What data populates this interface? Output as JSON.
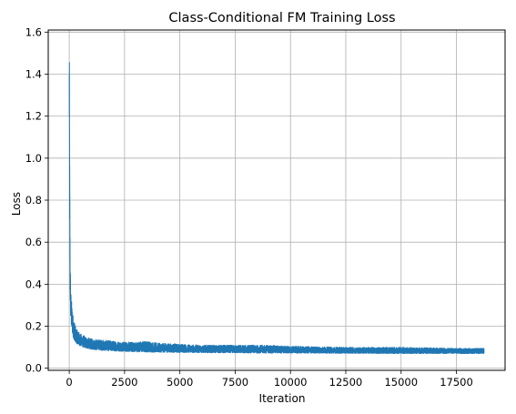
{
  "chart_data": {
    "type": "line",
    "title": "Class-Conditional FM Training Loss",
    "xlabel": "Iteration",
    "ylabel": "Loss",
    "xlim": [
      -950,
      19700
    ],
    "ylim": [
      -0.01,
      1.61
    ],
    "xticks": [
      0,
      2500,
      5000,
      7500,
      10000,
      12500,
      15000,
      17500
    ],
    "yticks": [
      0.0,
      0.2,
      0.4,
      0.6,
      0.8,
      1.0,
      1.2,
      1.4,
      1.6
    ],
    "grid": true,
    "legend": "none",
    "series": [
      {
        "color": "#1f77b4",
        "x_max": 18750,
        "x": [
          0,
          10,
          20,
          40,
          60,
          80,
          100,
          150,
          200,
          300,
          500,
          750,
          1000,
          1500,
          2000,
          2500,
          3000,
          3500,
          4000,
          5000,
          6000,
          7500,
          9000,
          10000,
          12500,
          15000,
          17500,
          18750
        ],
        "upper": [
          1.53,
          1.45,
          1.05,
          0.62,
          0.42,
          0.36,
          0.33,
          0.27,
          0.24,
          0.19,
          0.165,
          0.15,
          0.14,
          0.135,
          0.13,
          0.125,
          0.125,
          0.13,
          0.12,
          0.115,
          0.11,
          0.11,
          0.11,
          0.105,
          0.1,
          0.1,
          0.095,
          0.095
        ],
        "lower": [
          1.2,
          0.9,
          0.6,
          0.32,
          0.24,
          0.21,
          0.19,
          0.16,
          0.14,
          0.12,
          0.105,
          0.095,
          0.09,
          0.085,
          0.082,
          0.08,
          0.078,
          0.077,
          0.076,
          0.075,
          0.074,
          0.073,
          0.072,
          0.072,
          0.071,
          0.07,
          0.07,
          0.07
        ]
      }
    ]
  }
}
